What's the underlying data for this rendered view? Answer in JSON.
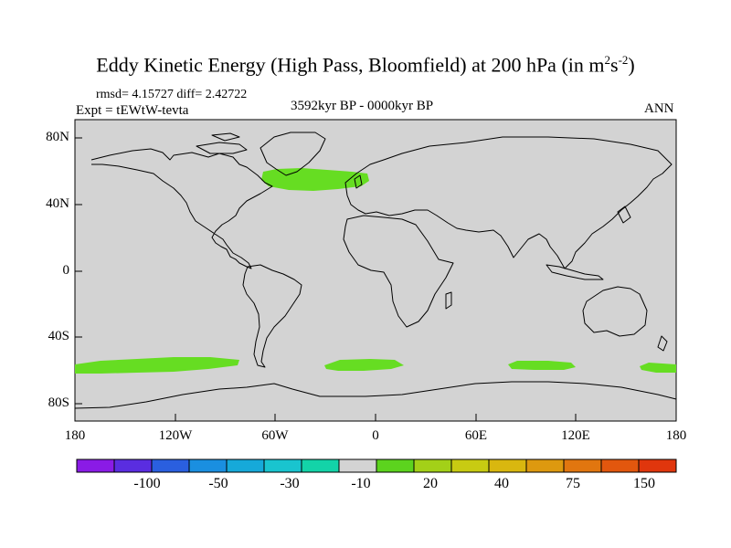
{
  "title": {
    "main": "Eddy Kinetic Energy (High Pass, Bloomfield) at 200 hPa (in m",
    "sup1": "2",
    "mid": "s",
    "sup2": "-2",
    "end": ")"
  },
  "stats": {
    "rmsd": "rmsd= 4.15727 diff= 2.42722"
  },
  "experiment": "Expt = tEWtW-tevta",
  "period": "3592kyr BP - 0000kyr BP",
  "season": "ANN",
  "map": {
    "land_color": "#d3d3d3",
    "anomaly_color": "#66dd22",
    "lat_labels": [
      "80N",
      "40N",
      "0",
      "40S",
      "80S"
    ],
    "lon_labels": [
      "180",
      "120W",
      "60W",
      "0",
      "60E",
      "120E",
      "180"
    ]
  },
  "colorbar": {
    "colors": [
      "#8a1be6",
      "#5a2de0",
      "#2a5fdf",
      "#1a8fe0",
      "#16a9d9",
      "#19c4cf",
      "#13d3a8",
      "#d3d3d3",
      "#5cd31e",
      "#a3d018",
      "#c8cb12",
      "#d9b70f",
      "#dd990f",
      "#e1760f",
      "#e2570e",
      "#e0360d"
    ],
    "labels": [
      "-100",
      "-50",
      "-30",
      "-10",
      "20",
      "40",
      "75",
      "150"
    ]
  }
}
